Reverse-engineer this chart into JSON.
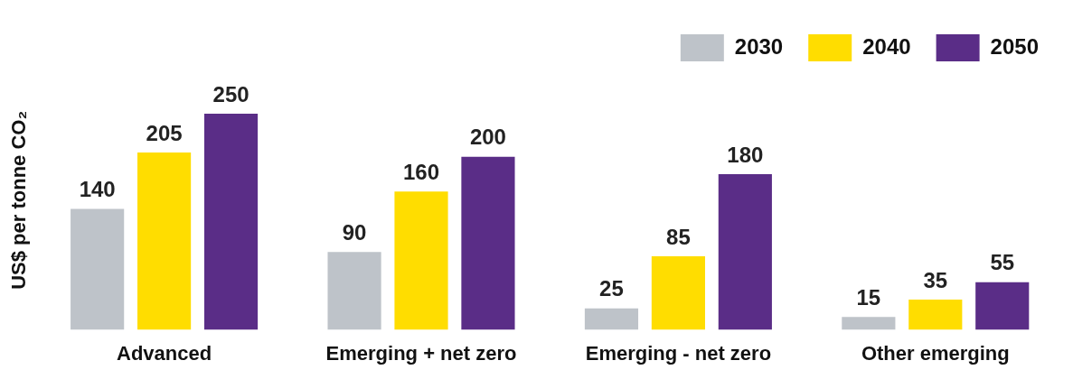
{
  "chart_data": {
    "type": "bar",
    "ylabel": "US$ per tonne CO₂",
    "categories": [
      "Advanced",
      "Emerging + net zero",
      "Emerging - net zero",
      "Other emerging"
    ],
    "series": [
      {
        "name": "2030",
        "color": "#bec3c9",
        "values": [
          140,
          90,
          25,
          15
        ]
      },
      {
        "name": "2040",
        "color": "#ffdd00",
        "values": [
          205,
          160,
          85,
          35
        ]
      },
      {
        "name": "2050",
        "color": "#5a2d87",
        "values": [
          250,
          200,
          180,
          55
        ]
      }
    ],
    "data_labels": true,
    "legend": "top right",
    "grid": false,
    "tick_labels": "x"
  }
}
